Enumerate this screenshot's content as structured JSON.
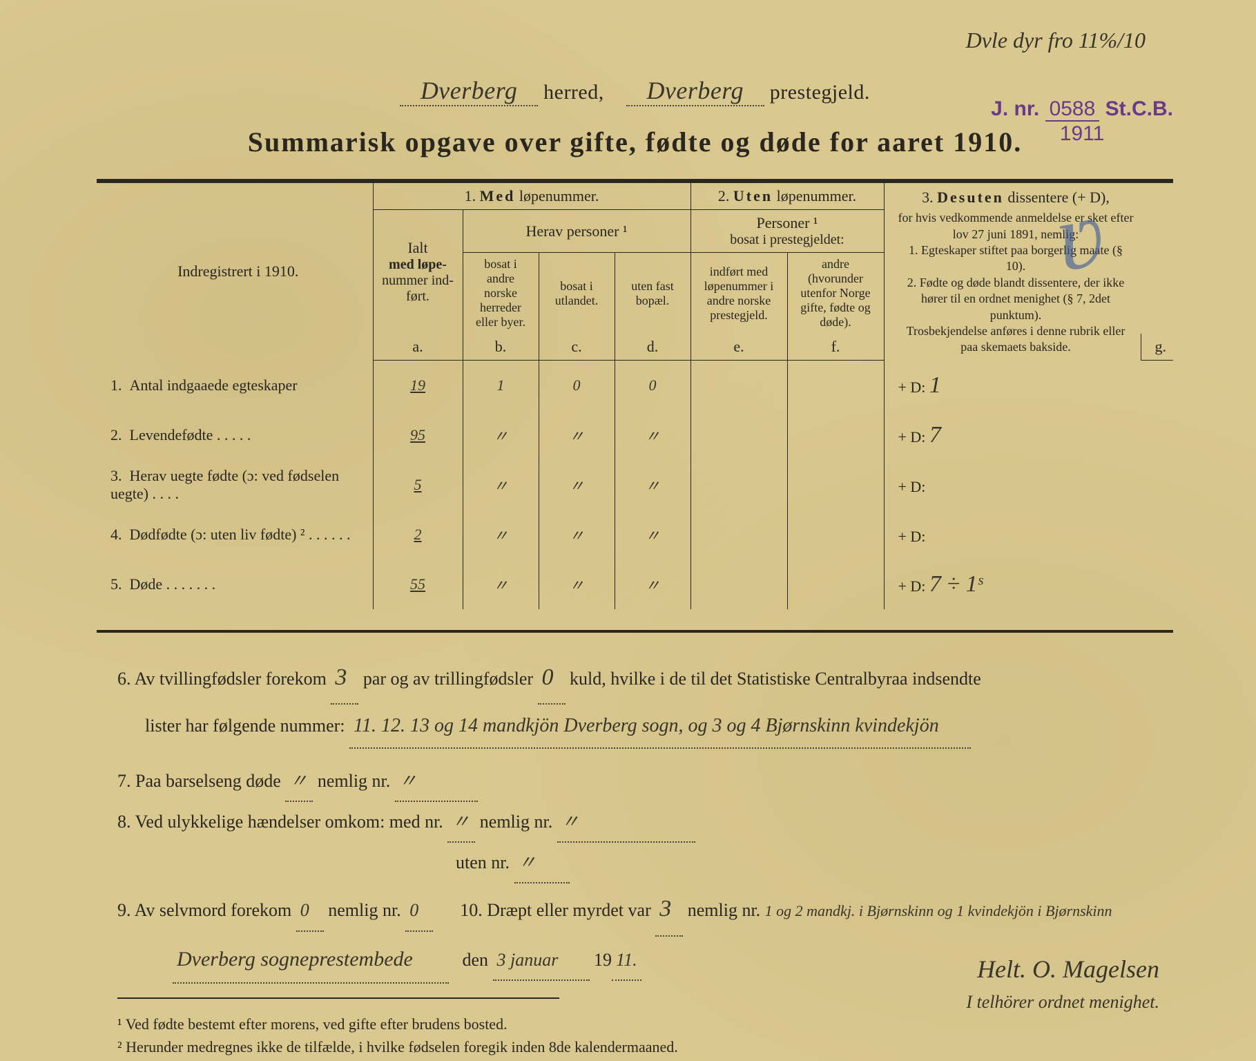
{
  "top_note": "Dvle dyr fro 11%/10",
  "herred": "Dverberg",
  "prestegjeld": "Dverberg",
  "label_herred": "herred,",
  "label_prestegjeld": "prestegjeld.",
  "title": "Summarisk opgave over gifte, fødte og døde for aaret 1910.",
  "stamp": {
    "jnr_label": "J. nr.",
    "jnr": "0588",
    "stcb": "St.C.B.",
    "year": "1911"
  },
  "col_label_head": "Indregistrert i 1910.",
  "head1": {
    "num": "1.",
    "text": "Med",
    "suffix": "løpenummer."
  },
  "head2": {
    "num": "2.",
    "text": "Uten",
    "suffix": "løpenummer."
  },
  "head3": {
    "num": "3.",
    "text": "Desuten",
    "suffix": "dissentere (+ D),"
  },
  "ialt": {
    "l1": "Ialt",
    "l2": "med løpe-",
    "l3": "nummer ind-",
    "l4": "ført."
  },
  "herav": "Herav personer ¹",
  "personer2": {
    "l1": "Personer ¹",
    "l2": "bosat i prestegjeldet:"
  },
  "sub_b": "bosat i andre norske herreder eller byer.",
  "sub_c": "bosat i utlandet.",
  "sub_d": "uten fast bopæl.",
  "sub_e": "indført med løpenummer i andre norske prestegjeld.",
  "sub_f": "andre (hvorunder utenfor Norge gifte, fødte og døde).",
  "g_text": "for hvis vedkommende anmeldelse er sket efter lov 27 juni 1891, nemlig:\n1. Egteskaper stiftet paa borgerlig maate (§ 10).\n2. Fødte og døde blandt dissentere, der ikke hører til en ordnet menighet (§ 7, 2det punktum).\nTrosbekjendelse anføres i denne rubrik eller paa skemaets bakside.",
  "letters": {
    "a": "a.",
    "b": "b.",
    "c": "c.",
    "d": "d.",
    "e": "e.",
    "f": "f.",
    "g": "g."
  },
  "rows": [
    {
      "n": "1.",
      "label": "Antal indgaaede egteskaper",
      "a": "19",
      "b": "1",
      "c": "0",
      "d": "0",
      "e": "",
      "f": "",
      "g": "+ D:  1"
    },
    {
      "n": "2.",
      "label": "Levendefødte   .   .   .   .   .",
      "a": "95",
      "b": "〃",
      "c": "〃",
      "d": "〃",
      "e": "",
      "f": "",
      "g": "+ D:  7"
    },
    {
      "n": "3.",
      "label": "Herav uegte fødte (ɔ: ved fødselen uegte)  .   .   .   .",
      "a": "5",
      "b": "〃",
      "c": "〃",
      "d": "〃",
      "e": "",
      "f": "",
      "g": "+ D:"
    },
    {
      "n": "4.",
      "label": "Dødfødte (ɔ: uten liv fødte) ²  .   .   .   .   .   .",
      "a": "2",
      "b": "〃",
      "c": "〃",
      "d": "〃",
      "e": "",
      "f": "",
      "g": "+ D:"
    },
    {
      "n": "5.",
      "label": "Døde  .   .   .   .   .   .   .",
      "a": "55",
      "b": "〃",
      "c": "〃",
      "d": "〃",
      "e": "",
      "f": "",
      "g": "+ D:  7 ÷ 1ˢ"
    }
  ],
  "item6": {
    "pre": "6.   Av tvillingfødsler forekom",
    "twins": "3",
    "mid1": "par og av trillingfødsler",
    "triplets": "0",
    "mid2": "kuld, hvilke i de til det Statistiske Centralbyraa indsendte",
    "l2pre": "lister har følgende nummer:",
    "l2fill": "11. 12. 13 og 14 mandkjön Dverberg sogn, og 3 og 4 Bjørnskinn kvindekjön"
  },
  "item7": {
    "pre": "7.   Paa barselseng døde",
    "v1": "〃",
    "mid": "nemlig nr.",
    "v2": "〃"
  },
  "item8": {
    "pre": "8.   Ved ulykkelige hændelser omkom:  med nr.",
    "v1": "〃",
    "mid": "nemlig nr.",
    "v2": "〃",
    "l2pre": "uten nr.",
    "v3": "〃"
  },
  "item9": {
    "pre": "9.   Av selvmord forekom",
    "v1": "0",
    "mid": "nemlig nr.",
    "v2": "0"
  },
  "item10": {
    "pre": "10.   Dræpt eller myrdet var",
    "v1": "3",
    "mid": "nemlig nr.",
    "v2": "1 og 2 mandkj. i Bjørnskinn og 1 kvindekjön i Bjørnskinn"
  },
  "dateline": {
    "place": "Dverberg sogneprestembede",
    "den": "den",
    "date": "3 januar",
    "year_pre": "19",
    "year": "11."
  },
  "signature": "Helt. O. Magelsen",
  "sig_note": "I telhörer ordnet menighet.",
  "foot1": "¹ Ved fødte bestemt efter morens, ved gifte efter brudens bosted.",
  "foot2": "² Herunder medregnes ikke de tilfælde, i hvilke fødselen foregik inden 8de kalendermaaned."
}
